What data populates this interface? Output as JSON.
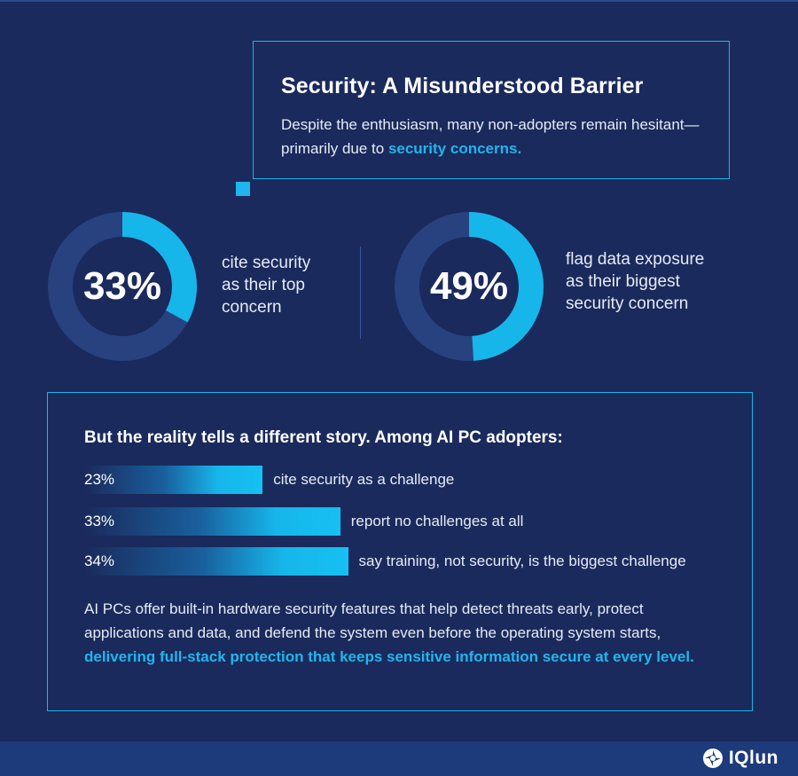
{
  "title": "Security: A Misunderstood Barrier",
  "intro": {
    "text": "Despite the enthusiasm, many non-adopters remain hesitant—primarily due to ",
    "highlight": "security concerns."
  },
  "stats": [
    {
      "value": 33,
      "label": "33%",
      "line1": "cite security",
      "line2": "as their top",
      "line3": "concern"
    },
    {
      "value": 49,
      "label": "49%",
      "line1": "flag data exposure",
      "line2": "as their biggest",
      "line3": "security concern"
    }
  ],
  "reality": {
    "heading": "But the reality tells a different story. Among AI PC adopters:",
    "bars": [
      {
        "value": 23,
        "label": "23%",
        "text": "cite security as a challenge"
      },
      {
        "value": 33,
        "label": "33%",
        "text": "report no challenges at all"
      },
      {
        "value": 34,
        "label": "34%",
        "text": "say training, not security, is the biggest challenge"
      }
    ],
    "body_text": "AI PCs offer built-in hardware security features that help detect threats early, protect applications and data, and defend the system even before the operating system starts, ",
    "body_highlight": "delivering full-stack protection that keeps sensitive information secure at every level."
  },
  "brand": {
    "name": "IQlun",
    "icon": "aperture-logo-icon"
  },
  "colors": {
    "background": "#1a2a5c",
    "accent": "#16b6ea",
    "track": "#27427f"
  }
}
